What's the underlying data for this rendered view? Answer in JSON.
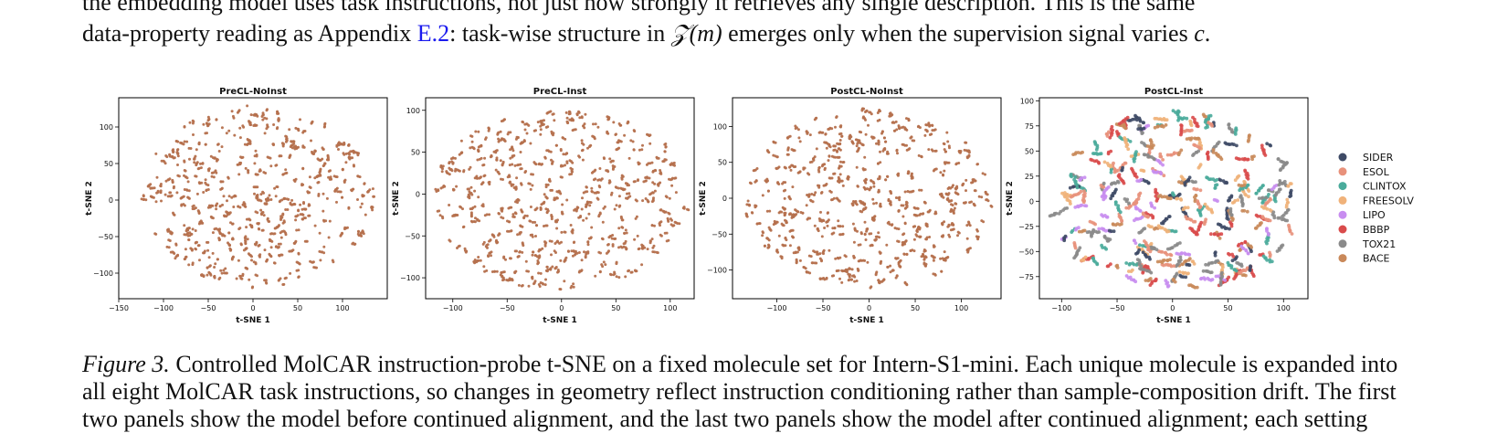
{
  "body_text": {
    "line1": "the embedding model uses task instructions, not just how strongly it retrieves any single description.  This is the same",
    "line2_before": "data-property reading as Appendix ",
    "line2_link": "E.2",
    "line2_mid": ": task-wise structure in ",
    "line2_math": "𝒵(m)",
    "line2_after": " emerges only when the supervision signal varies ",
    "line2_var": "c",
    "line2_end": "."
  },
  "caption": {
    "label": "Figure 3.",
    "line1": " Controlled MolCAR instruction-probe t-SNE on a fixed molecule set for Intern-S1-mini. Each unique molecule is expanded into",
    "line2": "all eight MolCAR task instructions, so changes in geometry reflect instruction conditioning rather than sample-composition drift. The first",
    "line3": "two panels show the model before continued alignment, and the last two panels show the model after continued alignment; each setting"
  },
  "colors": {
    "single": "#b5704d",
    "SIDER": "#3e4a66",
    "ESOL": "#e8917b",
    "CLINTOX": "#4aab9b",
    "FREESOLV": "#f0b27a",
    "LIPO": "#c88df0",
    "BBBP": "#d94b4b",
    "TOX21": "#8a8a8a",
    "BACE": "#c9895a"
  },
  "chart_data": [
    {
      "type": "scatter",
      "title": "PreCL-NoInst",
      "xlabel": "t-SNE 1",
      "ylabel": "t-SNE 2",
      "xlim": [
        -150,
        150
      ],
      "ylim": [
        -135,
        140
      ],
      "xticks": [
        -150,
        -100,
        -50,
        0,
        50,
        100
      ],
      "yticks": [
        -100,
        -50,
        0,
        50,
        100
      ],
      "cloud": {
        "cx": 5,
        "cy": 5,
        "rx": 130,
        "ry": 125
      }
    },
    {
      "type": "scatter",
      "title": "PreCL-Inst",
      "xlabel": "t-SNE 1",
      "ylabel": "t-SNE 2",
      "xlim": [
        -125,
        122
      ],
      "ylim": [
        -125,
        115
      ],
      "xticks": [
        -100,
        -50,
        0,
        50,
        100
      ],
      "yticks": [
        -100,
        -50,
        0,
        50,
        100
      ],
      "cloud": {
        "cx": 0,
        "cy": -5,
        "rx": 118,
        "ry": 110
      }
    },
    {
      "type": "scatter",
      "title": "PostCL-NoInst",
      "xlabel": "t-SNE 1",
      "ylabel": "t-SNE 2",
      "xlim": [
        -148,
        143
      ],
      "ylim": [
        -140,
        140
      ],
      "xticks": [
        -100,
        -50,
        0,
        50,
        100
      ],
      "yticks": [
        -100,
        -50,
        0,
        50,
        100
      ],
      "cloud": {
        "cx": 0,
        "cy": 0,
        "rx": 135,
        "ry": 125
      }
    },
    {
      "type": "scatter",
      "title": "PostCL-Inst",
      "xlabel": "t-SNE 1",
      "ylabel": "t-SNE 2",
      "xlim": [
        -120,
        122
      ],
      "ylim": [
        -97,
        103
      ],
      "xticks": [
        -100,
        -50,
        0,
        50,
        100
      ],
      "yticks": [
        -75,
        -50,
        -25,
        0,
        25,
        50,
        75,
        100
      ],
      "cloud": {
        "cx": 3,
        "cy": 0,
        "rx": 110,
        "ry": 90
      },
      "legend": [
        "SIDER",
        "ESOL",
        "CLINTOX",
        "FREESOLV",
        "LIPO",
        "BBBP",
        "TOX21",
        "BACE"
      ],
      "legend_position": "right"
    }
  ]
}
